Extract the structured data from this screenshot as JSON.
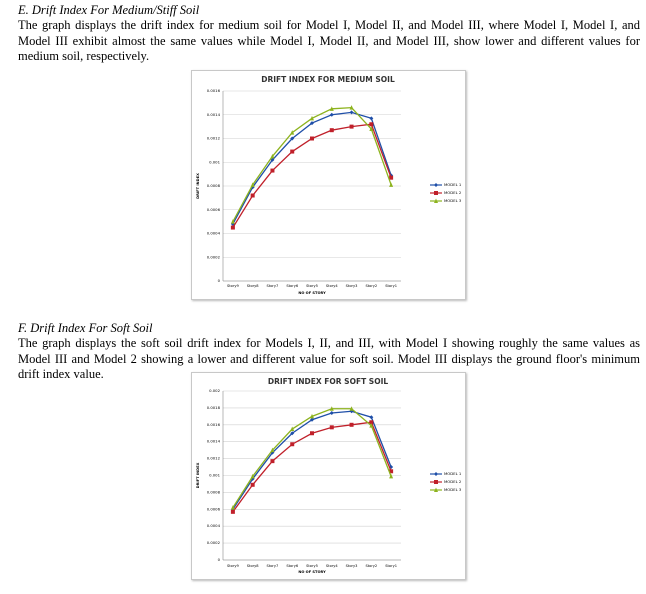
{
  "sections": [
    {
      "heading": "E.  Drift Index For Medium/Stiff Soil",
      "paragraph": "The graph displays the drift index for medium soil for Model I, Model II, and Model III, where Model I, Model I, and Model III exhibit almost the same values while Model I, Model II, and Model III, show lower and different values for medium soil, respectively."
    },
    {
      "heading": "F.  Drift Index For Soft  Soil",
      "paragraph": "The graph displays the soft soil drift index for Models I, II, and III, with Model I showing roughly the same values as  Model III and Model 2 showing a lower and different value for soft soil. Model III displays the ground floor's minimum drift index value."
    }
  ],
  "chart_data": [
    {
      "type": "line",
      "title": "DRIFT INDEX FOR MEDIUM SOIL",
      "x_label": "NO OF STORY",
      "y_label": "DRIFT INDEX",
      "categories": [
        "Story9",
        "Story8",
        "Story7",
        "Story6",
        "Story5",
        "Story4",
        "Story3",
        "Story2",
        "Story1"
      ],
      "ylim": [
        0,
        0.0016
      ],
      "yticks": [
        0,
        0.0002,
        0.0004,
        0.0006,
        0.0008,
        0.001,
        0.0012,
        0.0014,
        0.0016
      ],
      "grid": true,
      "legend": "right",
      "series": [
        {
          "name": "MODEL 1",
          "color": "#1f4fa8",
          "marker": "diamond",
          "values": [
            0.00048,
            0.00079,
            0.00102,
            0.0012,
            0.00133,
            0.0014,
            0.00142,
            0.00137,
            0.00089
          ]
        },
        {
          "name": "MODEL 2",
          "color": "#c0202a",
          "marker": "square",
          "values": [
            0.00045,
            0.00072,
            0.00093,
            0.00109,
            0.0012,
            0.00127,
            0.0013,
            0.00132,
            0.00087
          ]
        },
        {
          "name": "MODEL 3",
          "color": "#8db31e",
          "marker": "triangle",
          "values": [
            0.0005,
            0.00081,
            0.00105,
            0.00125,
            0.00137,
            0.00145,
            0.00146,
            0.00128,
            0.00081
          ]
        }
      ]
    },
    {
      "type": "line",
      "title": "DRIFT INDEX FOR SOFT SOIL",
      "x_label": "NO OF STORY",
      "y_label": "DRIFT INDEX",
      "categories": [
        "Story9",
        "Story8",
        "Story7",
        "Story6",
        "Story5",
        "Story4",
        "Story3",
        "Story2",
        "Story1"
      ],
      "ylim": [
        0,
        0.002
      ],
      "yticks": [
        0,
        0.0002,
        0.0004,
        0.0006,
        0.0008,
        0.001,
        0.0012,
        0.0014,
        0.0016,
        0.0018,
        0.002
      ],
      "grid": true,
      "legend": "right",
      "series": [
        {
          "name": "MODEL 1",
          "color": "#1f4fa8",
          "marker": "diamond",
          "values": [
            0.0006,
            0.00096,
            0.00127,
            0.0015,
            0.00166,
            0.00174,
            0.00176,
            0.00169,
            0.0011
          ]
        },
        {
          "name": "MODEL 2",
          "color": "#c0202a",
          "marker": "square",
          "values": [
            0.00057,
            0.00089,
            0.00117,
            0.00137,
            0.0015,
            0.00157,
            0.0016,
            0.00163,
            0.00105
          ]
        },
        {
          "name": "MODEL 3",
          "color": "#8db31e",
          "marker": "triangle",
          "values": [
            0.00062,
            0.00099,
            0.0013,
            0.00155,
            0.0017,
            0.00179,
            0.00179,
            0.00159,
            0.00099
          ]
        }
      ]
    }
  ]
}
